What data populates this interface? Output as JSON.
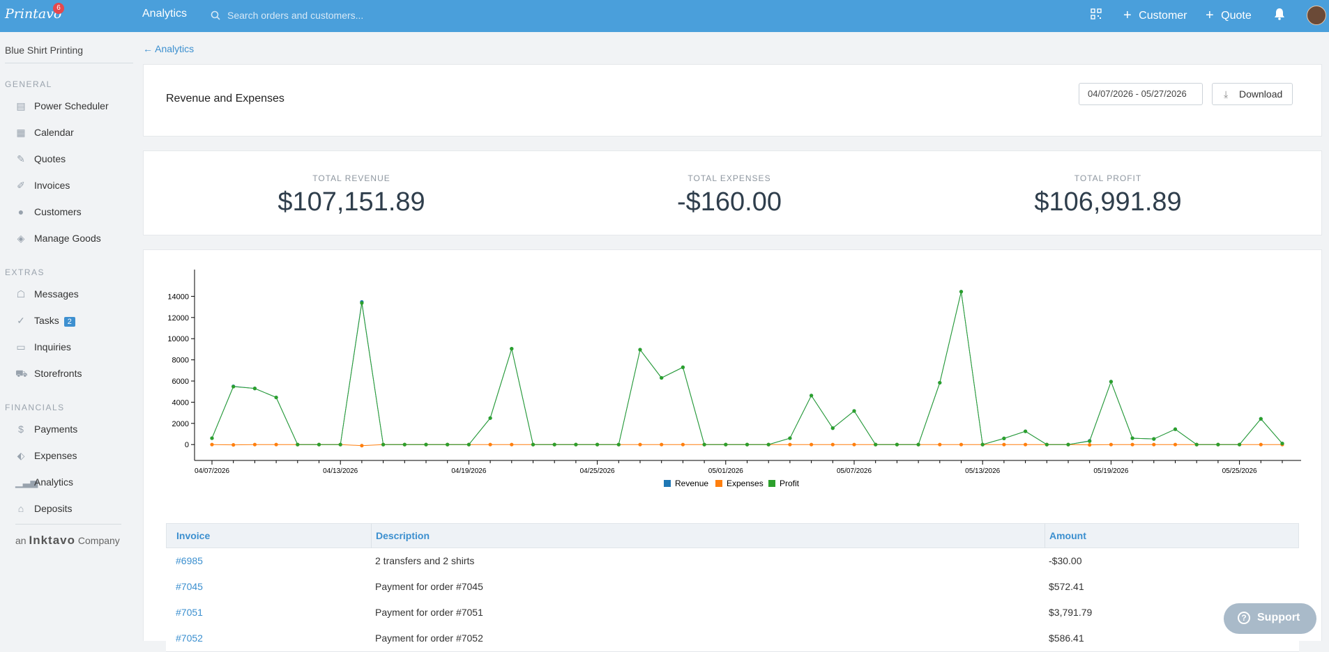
{
  "header": {
    "logo": "Printavo",
    "logo_badge": "6",
    "title": "Analytics",
    "search_placeholder": "Search orders and customers...",
    "customer_label": "Customer",
    "quote_label": "Quote"
  },
  "sidebar": {
    "org_name": "Blue Shirt Printing",
    "general_label": "GENERAL",
    "extras_label": "EXTRAS",
    "financials_label": "FINANCIALS",
    "general": [
      {
        "label": "Power Scheduler",
        "icon": "scheduler-icon"
      },
      {
        "label": "Calendar",
        "icon": "calendar-icon"
      },
      {
        "label": "Quotes",
        "icon": "pencil-icon"
      },
      {
        "label": "Invoices",
        "icon": "edit-icon"
      },
      {
        "label": "Customers",
        "icon": "person-icon"
      },
      {
        "label": "Manage Goods",
        "icon": "layers-icon"
      }
    ],
    "extras": [
      {
        "label": "Messages",
        "icon": "chat-icon"
      },
      {
        "label": "Tasks",
        "icon": "check-icon",
        "badge": "2"
      },
      {
        "label": "Inquiries",
        "icon": "inbox-icon"
      },
      {
        "label": "Storefronts",
        "icon": "cart-icon"
      }
    ],
    "financials": [
      {
        "label": "Payments",
        "icon": "dollar-icon"
      },
      {
        "label": "Expenses",
        "icon": "tag-icon"
      },
      {
        "label": "Analytics",
        "icon": "bar-chart-icon"
      },
      {
        "label": "Deposits",
        "icon": "bank-icon"
      }
    ],
    "company_prefix": "an",
    "company_brand": "Inktavo",
    "company_suffix": "Company"
  },
  "page": {
    "back_link": "← Analytics",
    "title": "Revenue and Expenses",
    "date_range": "04/07/2026 - 05/27/2026",
    "download_label": "Download"
  },
  "stats": {
    "revenue_label": "TOTAL REVENUE",
    "revenue_value": "$107,151.89",
    "expenses_label": "TOTAL EXPENSES",
    "expenses_value": "-$160.00",
    "profit_label": "TOTAL PROFIT",
    "profit_value": "$106,991.89"
  },
  "colors": {
    "revenue": "#1f77b4",
    "expenses": "#ff7f0e",
    "profit": "#2ca02c",
    "accent": "#4a9fdb"
  },
  "chart_data": {
    "type": "line",
    "x": [
      "04/07/2026",
      "04/08/2026",
      "04/09/2026",
      "04/10/2026",
      "04/11/2026",
      "04/12/2026",
      "04/13/2026",
      "04/14/2026",
      "04/15/2026",
      "04/16/2026",
      "04/17/2026",
      "04/18/2026",
      "04/19/2026",
      "04/20/2026",
      "04/21/2026",
      "04/22/2026",
      "04/23/2026",
      "04/24/2026",
      "04/25/2026",
      "04/26/2026",
      "04/27/2026",
      "04/28/2026",
      "04/29/2026",
      "04/30/2026",
      "05/01/2026",
      "05/02/2026",
      "05/03/2026",
      "05/04/2026",
      "05/05/2026",
      "05/06/2026",
      "05/07/2026",
      "05/08/2026",
      "05/09/2026",
      "05/10/2026",
      "05/11/2026",
      "05/12/2026",
      "05/13/2026",
      "05/14/2026",
      "05/15/2026",
      "05/16/2026",
      "05/17/2026",
      "05/18/2026",
      "05/19/2026",
      "05/20/2026",
      "05/21/2026",
      "05/22/2026",
      "05/23/2026",
      "05/24/2026",
      "05/25/2026",
      "05/26/2026",
      "05/27/2026"
    ],
    "tick_labels": [
      "04/07/2026",
      "04/13/2026",
      "04/19/2026",
      "04/25/2026",
      "05/01/2026",
      "05/07/2026",
      "05/13/2026",
      "05/19/2026",
      "05/25/2026"
    ],
    "y_ticks": [
      0,
      2000,
      4000,
      6000,
      8000,
      10000,
      12000,
      14000
    ],
    "ylim": [
      -1500,
      16000
    ],
    "legend": [
      "Revenue",
      "Expenses",
      "Profit"
    ],
    "legend_position": "bottom",
    "series": [
      {
        "name": "Revenue",
        "values": [
          600,
          5500,
          5300,
          4450,
          0,
          0,
          0,
          13470,
          0,
          0,
          0,
          0,
          0,
          2500,
          9050,
          0,
          0,
          0,
          0,
          0,
          8960,
          6300,
          7300,
          0,
          0,
          0,
          0,
          600,
          4630,
          1550,
          3170,
          0,
          0,
          0,
          5840,
          14440,
          0,
          580,
          1250,
          0,
          0,
          350,
          5940,
          600,
          530,
          1450,
          0,
          0,
          0,
          2430,
          100
        ]
      },
      {
        "name": "Expenses",
        "values": [
          0,
          -30,
          0,
          0,
          0,
          0,
          0,
          -100,
          0,
          0,
          0,
          0,
          0,
          0,
          0,
          0,
          0,
          0,
          0,
          0,
          0,
          0,
          0,
          0,
          0,
          0,
          0,
          0,
          0,
          0,
          0,
          0,
          0,
          0,
          0,
          0,
          0,
          0,
          0,
          0,
          0,
          -30,
          0,
          0,
          0,
          0,
          0,
          0,
          0,
          0,
          0
        ]
      },
      {
        "name": "Profit",
        "values": [
          600,
          5470,
          5300,
          4450,
          0,
          0,
          0,
          13370,
          0,
          0,
          0,
          0,
          0,
          2500,
          9050,
          0,
          0,
          0,
          0,
          0,
          8960,
          6300,
          7300,
          0,
          0,
          0,
          0,
          600,
          4630,
          1550,
          3170,
          0,
          0,
          0,
          5840,
          14440,
          0,
          580,
          1250,
          0,
          0,
          320,
          5940,
          600,
          530,
          1450,
          0,
          0,
          0,
          2430,
          100
        ]
      }
    ]
  },
  "table": {
    "headers": [
      "Invoice",
      "Description",
      "Amount"
    ],
    "rows": [
      {
        "invoice": "#6985",
        "description": "2 transfers and 2 shirts",
        "amount": "-$30.00"
      },
      {
        "invoice": "#7045",
        "description": "Payment for order #7045",
        "amount": "$572.41"
      },
      {
        "invoice": "#7051",
        "description": "Payment for order #7051",
        "amount": "$3,791.79"
      },
      {
        "invoice": "#7052",
        "description": "Payment for order #7052",
        "amount": "$586.41"
      }
    ]
  },
  "support_label": "Support"
}
